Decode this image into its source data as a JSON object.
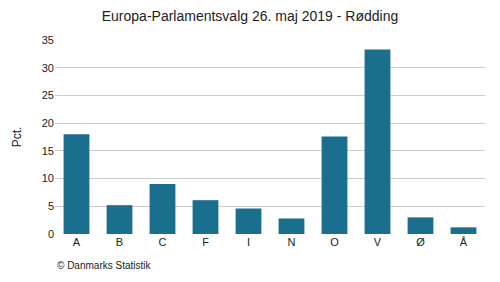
{
  "chart_data": {
    "type": "bar",
    "title": "Europa-Parlamentsvalg 26. maj 2019 - Rødding",
    "ylabel": "Pct.",
    "annotations": [
      "© Danmarks Statistik"
    ],
    "categories": [
      "A",
      "B",
      "C",
      "F",
      "I",
      "N",
      "O",
      "V",
      "Ø",
      "Å"
    ],
    "values": [
      18.0,
      5.2,
      9.0,
      6.1,
      4.6,
      2.8,
      17.6,
      33.3,
      3.0,
      1.2
    ],
    "color": "#1a6e8e",
    "ylim": [
      0,
      35
    ],
    "yticks": [
      0,
      5,
      10,
      15,
      20,
      25,
      30,
      35
    ],
    "grid": true
  }
}
